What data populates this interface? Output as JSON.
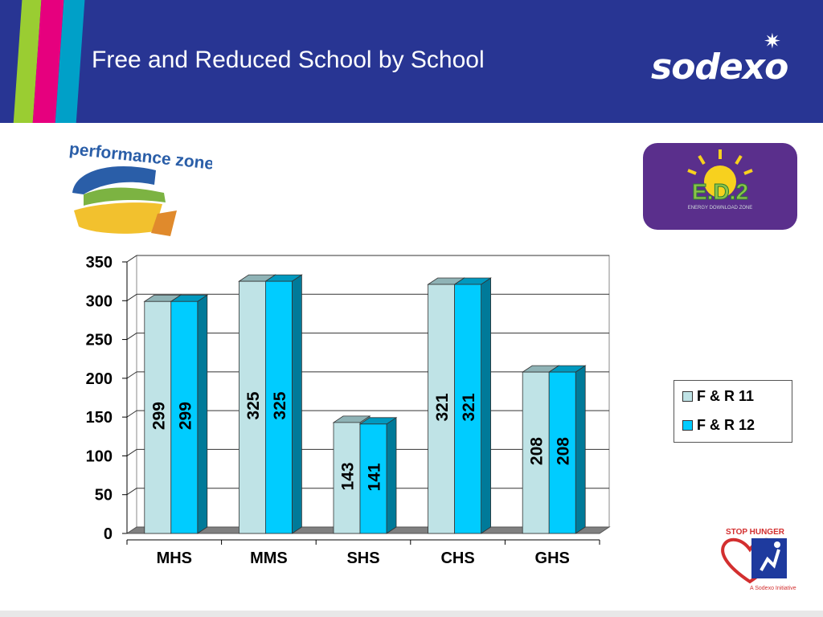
{
  "header": {
    "title": "Free and Reduced School by School",
    "brand": "sodexo"
  },
  "logos": {
    "left": "performance zone",
    "right_main": "E.D.2",
    "right_sub": "ENERGY DOWNLOAD ZONE",
    "bottom_top": "STOP HUNGER",
    "bottom_sub": "A Sodexo Initiative"
  },
  "colors": {
    "header_bg": "#283593",
    "series_1": "#bfe3e6",
    "series_2": "#00ccff"
  },
  "chart_data": {
    "type": "bar",
    "categories": [
      "MHS",
      "MMS",
      "SHS",
      "CHS",
      "GHS"
    ],
    "series": [
      {
        "name": "F & R 11",
        "values": [
          299,
          325,
          143,
          321,
          208
        ]
      },
      {
        "name": "F & R 12",
        "values": [
          299,
          325,
          141,
          321,
          208
        ]
      }
    ],
    "yticks": [
      "0",
      "50",
      "100",
      "150",
      "200",
      "250",
      "300",
      "350"
    ],
    "ylim": [
      0,
      350
    ],
    "grid": true,
    "legend_position": "right"
  }
}
